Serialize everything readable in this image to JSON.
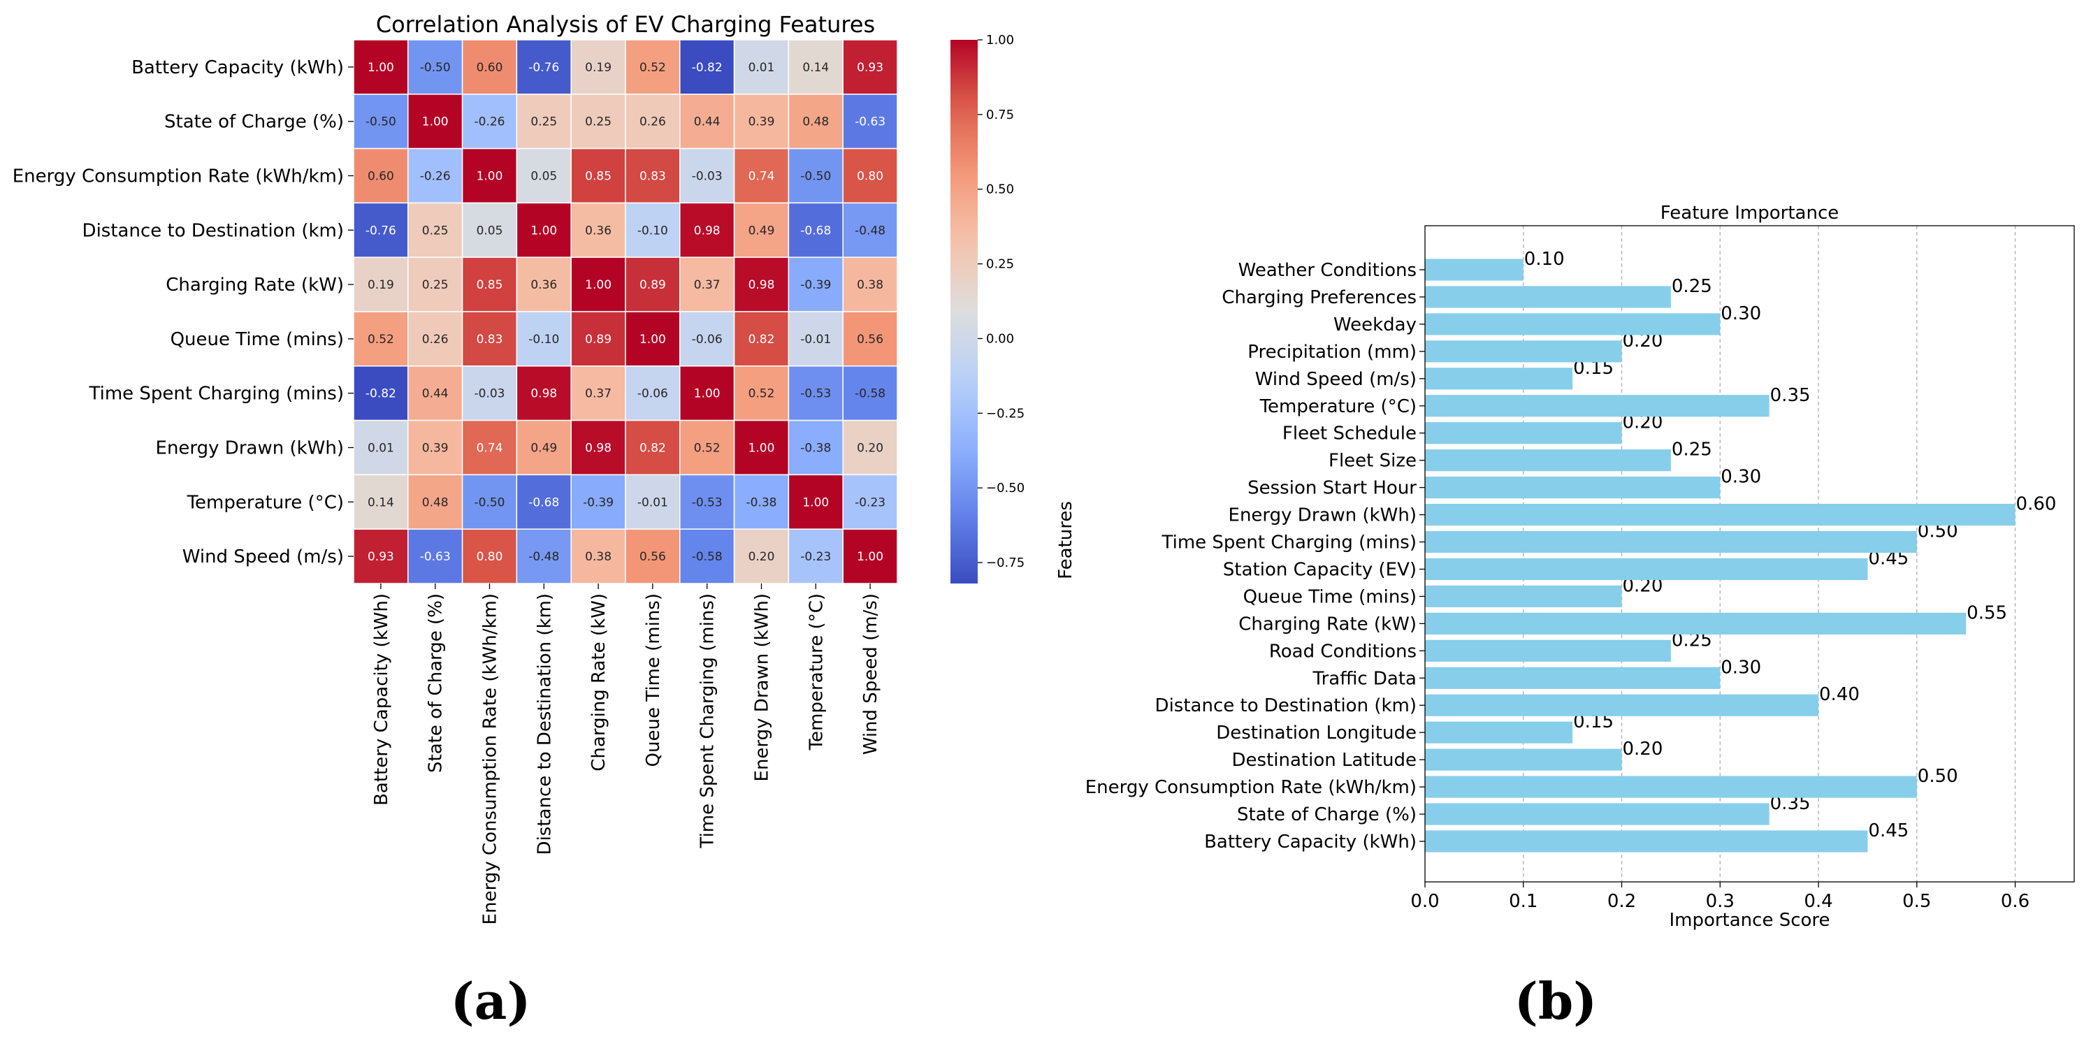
{
  "panel_labels": {
    "a": "(a)",
    "b": "(b)"
  },
  "colors": {
    "bar": "#87ceeb",
    "grid": "#b0b0b0",
    "cold": "#3b4cc0",
    "neutral": "#dddddd",
    "hot": "#b40426"
  },
  "chart_data": [
    {
      "type": "heatmap",
      "title": "Correlation Analysis of EV Charging Features",
      "row_labels": [
        "Battery Capacity (kWh)",
        "State of Charge (%)",
        "Energy Consumption Rate (kWh/km)",
        "Distance to Destination (km)",
        "Charging Rate (kW)",
        "Queue Time (mins)",
        "Time Spent Charging (mins)",
        "Energy Drawn (kWh)",
        "Temperature (°C)",
        "Wind Speed (m/s)"
      ],
      "col_labels": [
        "Battery Capacity (kWh)",
        "State of Charge (%)",
        "Energy Consumption Rate (kWh/km)",
        "Distance to Destination (km)",
        "Charging Rate (kW)",
        "Queue Time (mins)",
        "Time Spent Charging (mins)",
        "Energy Drawn (kWh)",
        "Temperature (°C)",
        "Wind Speed (m/s)"
      ],
      "values": [
        [
          1.0,
          -0.5,
          0.6,
          -0.76,
          0.19,
          0.52,
          -0.82,
          0.01,
          0.14,
          0.93
        ],
        [
          -0.5,
          1.0,
          -0.26,
          0.25,
          0.25,
          0.26,
          0.44,
          0.39,
          0.48,
          -0.63
        ],
        [
          0.6,
          -0.26,
          1.0,
          0.05,
          0.85,
          0.83,
          -0.03,
          0.74,
          -0.5,
          0.8
        ],
        [
          -0.76,
          0.25,
          0.05,
          1.0,
          0.36,
          -0.1,
          0.98,
          0.49,
          -0.68,
          -0.48
        ],
        [
          0.19,
          0.25,
          0.85,
          0.36,
          1.0,
          0.89,
          0.37,
          0.98,
          -0.39,
          0.38
        ],
        [
          0.52,
          0.26,
          0.83,
          -0.1,
          0.89,
          1.0,
          -0.06,
          0.82,
          -0.01,
          0.56
        ],
        [
          -0.82,
          0.44,
          -0.03,
          0.98,
          0.37,
          -0.06,
          1.0,
          0.52,
          -0.53,
          -0.58
        ],
        [
          0.01,
          0.39,
          0.74,
          0.49,
          0.98,
          0.82,
          0.52,
          1.0,
          -0.38,
          0.2
        ],
        [
          0.14,
          0.48,
          -0.5,
          -0.68,
          -0.39,
          -0.01,
          -0.53,
          -0.38,
          1.0,
          -0.23
        ],
        [
          0.93,
          -0.63,
          0.8,
          -0.48,
          0.38,
          0.56,
          -0.58,
          0.2,
          -0.23,
          1.0
        ]
      ],
      "value_labels": [
        [
          "1.00",
          "-0.50",
          "0.60",
          "-0.76",
          "0.19",
          "0.52",
          "-0.82",
          "0.01",
          "0.14",
          "0.93"
        ],
        [
          "-0.50",
          "1.00",
          "-0.26",
          "0.25",
          "0.25",
          "0.26",
          "0.44",
          "0.39",
          "0.48",
          "-0.63"
        ],
        [
          "0.60",
          "-0.26",
          "1.00",
          "0.05",
          "0.85",
          "0.83",
          "-0.03",
          "0.74",
          "-0.50",
          "0.80"
        ],
        [
          "-0.76",
          "0.25",
          "0.05",
          "1.00",
          "0.36",
          "-0.10",
          "0.98",
          "0.49",
          "-0.68",
          "-0.48"
        ],
        [
          "0.19",
          "0.25",
          "0.85",
          "0.36",
          "1.00",
          "0.89",
          "0.37",
          "0.98",
          "-0.39",
          "0.38"
        ],
        [
          "0.52",
          "0.26",
          "0.83",
          "-0.10",
          "0.89",
          "1.00",
          "-0.06",
          "0.82",
          "-0.01",
          "0.56"
        ],
        [
          "-0.82",
          "0.44",
          "-0.03",
          "0.98",
          "0.37",
          "-0.06",
          "1.00",
          "0.52",
          "-0.53",
          "-0.58"
        ],
        [
          "0.01",
          "0.39",
          "0.74",
          "0.49",
          "0.98",
          "0.82",
          "0.52",
          "1.00",
          "-0.38",
          "0.20"
        ],
        [
          "0.14",
          "0.48",
          "-0.50",
          "-0.68",
          "-0.39",
          "-0.01",
          "-0.53",
          "-0.38",
          "1.00",
          "-0.23"
        ],
        [
          "0.93",
          "-0.63",
          "0.80",
          "-0.48",
          "0.38",
          "0.56",
          "-0.58",
          "0.20",
          "-0.23",
          "1.00"
        ]
      ],
      "colorbar": {
        "range": [
          -0.82,
          1.0
        ],
        "ticks": [
          1.0,
          0.75,
          0.5,
          0.25,
          0.0,
          -0.25,
          -0.5,
          -0.75
        ],
        "tick_labels": [
          "1.00",
          "0.75",
          "0.50",
          "0.25",
          "0.00",
          "−0.25",
          "−0.50",
          "−0.75"
        ],
        "colormap": "coolwarm"
      }
    },
    {
      "type": "bar",
      "orientation": "horizontal",
      "title": "Feature Importance",
      "xlabel": "Importance Score",
      "ylabel": "Features",
      "categories": [
        "Battery Capacity (kWh)",
        "State of Charge (%)",
        "Energy Consumption Rate (kWh/km)",
        "Destination Latitude",
        "Destination Longitude",
        "Distance to Destination (km)",
        "Traffic Data",
        "Road Conditions",
        "Charging Rate (kW)",
        "Queue Time (mins)",
        "Station Capacity (EV)",
        "Time Spent Charging (mins)",
        "Energy Drawn (kWh)",
        "Session Start Hour",
        "Fleet Size",
        "Fleet Schedule",
        "Temperature (°C)",
        "Wind Speed (m/s)",
        "Precipitation (mm)",
        "Weekday",
        "Charging Preferences",
        "Weather Conditions"
      ],
      "values": [
        0.45,
        0.35,
        0.5,
        0.2,
        0.15,
        0.4,
        0.3,
        0.25,
        0.55,
        0.2,
        0.45,
        0.5,
        0.6,
        0.3,
        0.25,
        0.2,
        0.35,
        0.15,
        0.2,
        0.3,
        0.25,
        0.1
      ],
      "value_labels": [
        "0.45",
        "0.35",
        "0.50",
        "0.20",
        "0.15",
        "0.40",
        "0.30",
        "0.25",
        "0.55",
        "0.20",
        "0.45",
        "0.50",
        "0.60",
        "0.30",
        "0.25",
        "0.20",
        "0.35",
        "0.15",
        "0.20",
        "0.30",
        "0.25",
        "0.10"
      ],
      "xlim": [
        0,
        0.66
      ],
      "xticks": [
        0.0,
        0.1,
        0.2,
        0.3,
        0.4,
        0.5,
        0.6
      ],
      "xtick_labels": [
        "0.0",
        "0.1",
        "0.2",
        "0.3",
        "0.4",
        "0.5",
        "0.6"
      ],
      "grid": "x-dashed"
    }
  ]
}
